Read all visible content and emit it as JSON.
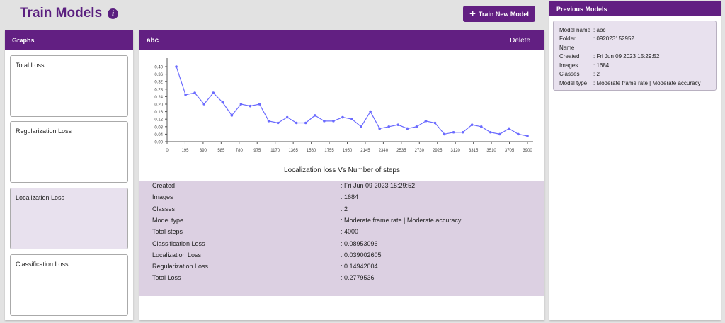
{
  "header": {
    "title": "Train Models",
    "info_icon": "info-icon",
    "train_button": "Train New Model"
  },
  "graphs": {
    "title": "Graphs",
    "items": [
      "Total Loss",
      "Regularization Loss",
      "Localization Loss",
      "Classification Loss"
    ],
    "selected": "Localization Loss"
  },
  "model": {
    "name": "abc",
    "delete": "Delete",
    "details": [
      [
        "Created",
        ": Fri Jun 09 2023 15:29:52"
      ],
      [
        "Images",
        ": 1684"
      ],
      [
        "Classes",
        ": 2"
      ],
      [
        "Model type",
        ": Moderate frame rate | Moderate accuracy"
      ],
      [
        "Total steps",
        ": 4000"
      ],
      [
        "Classification Loss",
        ": 0.08953096"
      ],
      [
        "Localization Loss",
        ": 0.039002605"
      ],
      [
        "Regularization Loss",
        ": 0.14942004"
      ],
      [
        "Total Loss",
        ": 0.2779536"
      ]
    ]
  },
  "previous": {
    "title": "Previous Models",
    "rows": [
      [
        "Model name",
        ": abc"
      ],
      [
        "Folder",
        ": 092023152952"
      ],
      [
        "Name",
        ""
      ],
      [
        "Created",
        ": Fri Jun 09 2023 15:29:52"
      ],
      [
        "Images",
        ": 1684"
      ],
      [
        "Classes",
        ": 2"
      ],
      [
        "Model type",
        ": Moderate frame rate | Moderate accuracy"
      ]
    ]
  },
  "colors": {
    "accent": "#621f82",
    "line": "#6b6bff"
  },
  "chart_data": {
    "type": "line",
    "title": "Localization loss Vs Number of steps",
    "xlabel": "",
    "ylabel": "",
    "xlim": [
      0,
      3900
    ],
    "ylim": [
      0,
      0.4
    ],
    "xticks": [
      0,
      195,
      390,
      585,
      780,
      975,
      1170,
      1365,
      1560,
      1755,
      1950,
      2145,
      2340,
      2535,
      2730,
      2925,
      3120,
      3315,
      3510,
      3705,
      3900
    ],
    "yticks": [
      0,
      0.04,
      0.08,
      0.12,
      0.16,
      0.2,
      0.24,
      0.28,
      0.32,
      0.36,
      0.4
    ],
    "x": [
      100,
      200,
      300,
      400,
      500,
      600,
      700,
      800,
      900,
      1000,
      1100,
      1200,
      1300,
      1400,
      1500,
      1600,
      1700,
      1800,
      1900,
      2000,
      2100,
      2200,
      2300,
      2400,
      2500,
      2600,
      2700,
      2800,
      2900,
      3000,
      3100,
      3200,
      3300,
      3400,
      3500,
      3600,
      3700,
      3800,
      3900
    ],
    "y": [
      0.4,
      0.25,
      0.26,
      0.2,
      0.26,
      0.21,
      0.14,
      0.2,
      0.19,
      0.2,
      0.11,
      0.1,
      0.13,
      0.1,
      0.1,
      0.14,
      0.11,
      0.11,
      0.13,
      0.12,
      0.08,
      0.16,
      0.07,
      0.08,
      0.09,
      0.07,
      0.08,
      0.11,
      0.1,
      0.04,
      0.05,
      0.05,
      0.09,
      0.08,
      0.05,
      0.04,
      0.07,
      0.04,
      0.03
    ]
  }
}
